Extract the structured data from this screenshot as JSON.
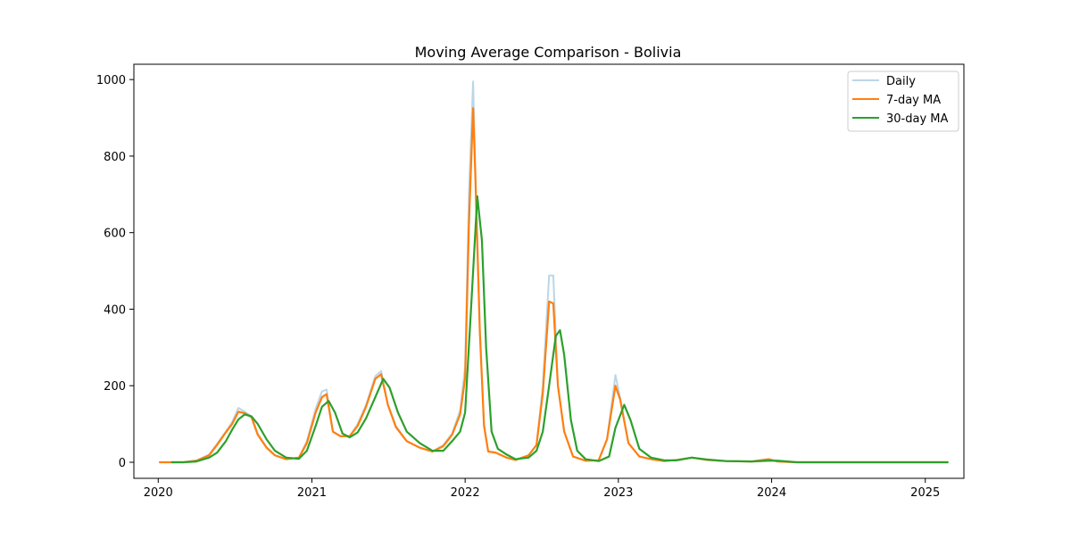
{
  "chart_data": {
    "type": "line",
    "title": "Moving Average Comparison - Bolivia",
    "xlabel": "",
    "ylabel": "",
    "xlim": [
      "2019-11-04",
      "2025-04-03"
    ],
    "ylim": [
      -42,
      1040
    ],
    "x_ticks": [
      "2020",
      "2021",
      "2022",
      "2023",
      "2024",
      "2025"
    ],
    "y_ticks": [
      0,
      200,
      400,
      600,
      800,
      1000
    ],
    "grid": false,
    "legend_position": "upper right",
    "series": [
      {
        "name": "Daily",
        "color": "#1f77b4",
        "opacity": 0.3,
        "points": [
          [
            "2020-01-03",
            0
          ],
          [
            "2020-02-01",
            0
          ],
          [
            "2020-03-01",
            0
          ],
          [
            "2020-04-01",
            4
          ],
          [
            "2020-05-01",
            20
          ],
          [
            "2020-05-20",
            48
          ],
          [
            "2020-06-10",
            80
          ],
          [
            "2020-06-25",
            105
          ],
          [
            "2020-07-10",
            142
          ],
          [
            "2020-07-25",
            132
          ],
          [
            "2020-08-10",
            120
          ],
          [
            "2020-08-25",
            75
          ],
          [
            "2020-09-15",
            40
          ],
          [
            "2020-10-05",
            18
          ],
          [
            "2020-11-01",
            8
          ],
          [
            "2020-12-01",
            12
          ],
          [
            "2020-12-20",
            55
          ],
          [
            "2021-01-10",
            140
          ],
          [
            "2021-01-25",
            185
          ],
          [
            "2021-02-05",
            190
          ],
          [
            "2021-02-20",
            80
          ],
          [
            "2021-03-10",
            68
          ],
          [
            "2021-04-01",
            68
          ],
          [
            "2021-04-20",
            100
          ],
          [
            "2021-05-10",
            150
          ],
          [
            "2021-06-01",
            225
          ],
          [
            "2021-06-15",
            238
          ],
          [
            "2021-07-01",
            150
          ],
          [
            "2021-07-20",
            95
          ],
          [
            "2021-08-15",
            55
          ],
          [
            "2021-09-15",
            38
          ],
          [
            "2021-10-15",
            28
          ],
          [
            "2021-11-10",
            45
          ],
          [
            "2021-12-01",
            75
          ],
          [
            "2021-12-20",
            135
          ],
          [
            "2022-01-01",
            250
          ],
          [
            "2022-01-10",
            700
          ],
          [
            "2022-01-20",
            995
          ],
          [
            "2022-01-25",
            780
          ],
          [
            "2022-02-05",
            350
          ],
          [
            "2022-02-15",
            100
          ],
          [
            "2022-02-25",
            28
          ],
          [
            "2022-03-15",
            25
          ],
          [
            "2022-04-10",
            12
          ],
          [
            "2022-05-01",
            6
          ],
          [
            "2022-06-01",
            18
          ],
          [
            "2022-06-20",
            45
          ],
          [
            "2022-07-05",
            200
          ],
          [
            "2022-07-20",
            488
          ],
          [
            "2022-07-30",
            488
          ],
          [
            "2022-08-10",
            200
          ],
          [
            "2022-08-25",
            80
          ],
          [
            "2022-09-15",
            15
          ],
          [
            "2022-10-15",
            4
          ],
          [
            "2022-11-15",
            5
          ],
          [
            "2022-12-05",
            60
          ],
          [
            "2022-12-25",
            228
          ],
          [
            "2023-01-05",
            170
          ],
          [
            "2023-01-25",
            50
          ],
          [
            "2023-02-20",
            15
          ],
          [
            "2023-03-20",
            8
          ],
          [
            "2023-04-20",
            3
          ],
          [
            "2023-05-20",
            6
          ],
          [
            "2023-06-25",
            12
          ],
          [
            "2023-08-01",
            6
          ],
          [
            "2023-09-15",
            3
          ],
          [
            "2023-11-15",
            2
          ],
          [
            "2023-12-25",
            8
          ],
          [
            "2024-01-15",
            2
          ],
          [
            "2024-03-01",
            0
          ],
          [
            "2024-06-01",
            0
          ],
          [
            "2025-01-01",
            0
          ],
          [
            "2025-02-25",
            0
          ]
        ]
      },
      {
        "name": "7-day MA",
        "color": "#ff7f0e",
        "opacity": 1,
        "points": [
          [
            "2020-01-03",
            0
          ],
          [
            "2020-02-01",
            0
          ],
          [
            "2020-03-01",
            0
          ],
          [
            "2020-04-01",
            4
          ],
          [
            "2020-05-01",
            18
          ],
          [
            "2020-05-20",
            45
          ],
          [
            "2020-06-10",
            78
          ],
          [
            "2020-06-25",
            100
          ],
          [
            "2020-07-10",
            132
          ],
          [
            "2020-07-25",
            128
          ],
          [
            "2020-08-10",
            118
          ],
          [
            "2020-08-25",
            72
          ],
          [
            "2020-09-15",
            38
          ],
          [
            "2020-10-05",
            18
          ],
          [
            "2020-11-01",
            8
          ],
          [
            "2020-12-01",
            12
          ],
          [
            "2020-12-20",
            50
          ],
          [
            "2021-01-10",
            130
          ],
          [
            "2021-01-25",
            170
          ],
          [
            "2021-02-05",
            178
          ],
          [
            "2021-02-20",
            80
          ],
          [
            "2021-03-10",
            68
          ],
          [
            "2021-04-01",
            68
          ],
          [
            "2021-04-20",
            95
          ],
          [
            "2021-05-10",
            145
          ],
          [
            "2021-06-01",
            218
          ],
          [
            "2021-06-15",
            230
          ],
          [
            "2021-07-01",
            150
          ],
          [
            "2021-07-20",
            92
          ],
          [
            "2021-08-15",
            55
          ],
          [
            "2021-09-15",
            38
          ],
          [
            "2021-10-15",
            28
          ],
          [
            "2021-11-10",
            42
          ],
          [
            "2021-12-01",
            72
          ],
          [
            "2021-12-20",
            125
          ],
          [
            "2022-01-01",
            220
          ],
          [
            "2022-01-10",
            620
          ],
          [
            "2022-01-20",
            925
          ],
          [
            "2022-01-25",
            760
          ],
          [
            "2022-02-05",
            340
          ],
          [
            "2022-02-15",
            95
          ],
          [
            "2022-02-25",
            28
          ],
          [
            "2022-03-15",
            25
          ],
          [
            "2022-04-10",
            12
          ],
          [
            "2022-05-01",
            6
          ],
          [
            "2022-06-01",
            18
          ],
          [
            "2022-06-20",
            45
          ],
          [
            "2022-07-05",
            180
          ],
          [
            "2022-07-20",
            420
          ],
          [
            "2022-07-30",
            415
          ],
          [
            "2022-08-10",
            200
          ],
          [
            "2022-08-25",
            80
          ],
          [
            "2022-09-15",
            15
          ],
          [
            "2022-10-15",
            4
          ],
          [
            "2022-11-15",
            5
          ],
          [
            "2022-12-05",
            60
          ],
          [
            "2022-12-25",
            200
          ],
          [
            "2023-01-05",
            165
          ],
          [
            "2023-01-25",
            50
          ],
          [
            "2023-02-20",
            15
          ],
          [
            "2023-03-20",
            8
          ],
          [
            "2023-04-20",
            3
          ],
          [
            "2023-05-20",
            6
          ],
          [
            "2023-06-25",
            12
          ],
          [
            "2023-08-01",
            6
          ],
          [
            "2023-09-15",
            3
          ],
          [
            "2023-11-15",
            2
          ],
          [
            "2023-12-25",
            8
          ],
          [
            "2024-01-15",
            2
          ],
          [
            "2024-03-01",
            0
          ],
          [
            "2024-06-01",
            0
          ],
          [
            "2025-01-01",
            0
          ],
          [
            "2025-02-25",
            0
          ]
        ]
      },
      {
        "name": "30-day MA",
        "color": "#2ca02c",
        "opacity": 1,
        "points": [
          [
            "2020-02-01",
            0
          ],
          [
            "2020-03-01",
            0
          ],
          [
            "2020-04-01",
            2
          ],
          [
            "2020-05-01",
            12
          ],
          [
            "2020-05-20",
            25
          ],
          [
            "2020-06-10",
            55
          ],
          [
            "2020-06-25",
            85
          ],
          [
            "2020-07-10",
            112
          ],
          [
            "2020-07-25",
            125
          ],
          [
            "2020-08-10",
            120
          ],
          [
            "2020-08-25",
            100
          ],
          [
            "2020-09-15",
            60
          ],
          [
            "2020-10-05",
            30
          ],
          [
            "2020-11-01",
            12
          ],
          [
            "2020-12-01",
            9
          ],
          [
            "2020-12-20",
            30
          ],
          [
            "2021-01-10",
            95
          ],
          [
            "2021-01-25",
            145
          ],
          [
            "2021-02-10",
            160
          ],
          [
            "2021-02-25",
            130
          ],
          [
            "2021-03-15",
            75
          ],
          [
            "2021-04-01",
            65
          ],
          [
            "2021-04-20",
            78
          ],
          [
            "2021-05-10",
            115
          ],
          [
            "2021-06-01",
            170
          ],
          [
            "2021-06-20",
            218
          ],
          [
            "2021-07-05",
            195
          ],
          [
            "2021-07-25",
            130
          ],
          [
            "2021-08-15",
            80
          ],
          [
            "2021-09-15",
            50
          ],
          [
            "2021-10-15",
            30
          ],
          [
            "2021-11-10",
            30
          ],
          [
            "2021-12-01",
            55
          ],
          [
            "2021-12-20",
            80
          ],
          [
            "2022-01-01",
            130
          ],
          [
            "2022-01-15",
            400
          ],
          [
            "2022-01-30",
            695
          ],
          [
            "2022-02-10",
            580
          ],
          [
            "2022-02-20",
            300
          ],
          [
            "2022-03-05",
            80
          ],
          [
            "2022-03-20",
            35
          ],
          [
            "2022-04-10",
            20
          ],
          [
            "2022-05-01",
            8
          ],
          [
            "2022-06-01",
            12
          ],
          [
            "2022-06-20",
            30
          ],
          [
            "2022-07-05",
            80
          ],
          [
            "2022-07-20",
            200
          ],
          [
            "2022-08-05",
            330
          ],
          [
            "2022-08-15",
            345
          ],
          [
            "2022-08-25",
            280
          ],
          [
            "2022-09-10",
            110
          ],
          [
            "2022-09-25",
            30
          ],
          [
            "2022-10-15",
            8
          ],
          [
            "2022-11-15",
            3
          ],
          [
            "2022-12-10",
            15
          ],
          [
            "2022-12-25",
            90
          ],
          [
            "2023-01-15",
            150
          ],
          [
            "2023-01-30",
            110
          ],
          [
            "2023-02-20",
            35
          ],
          [
            "2023-03-20",
            12
          ],
          [
            "2023-04-20",
            5
          ],
          [
            "2023-05-20",
            5
          ],
          [
            "2023-06-25",
            12
          ],
          [
            "2023-08-01",
            7
          ],
          [
            "2023-09-15",
            3
          ],
          [
            "2023-11-15",
            2
          ],
          [
            "2023-12-25",
            4
          ],
          [
            "2024-01-15",
            4
          ],
          [
            "2024-03-01",
            0
          ],
          [
            "2024-06-01",
            0
          ],
          [
            "2025-01-01",
            0
          ],
          [
            "2025-02-25",
            0
          ]
        ]
      }
    ]
  }
}
